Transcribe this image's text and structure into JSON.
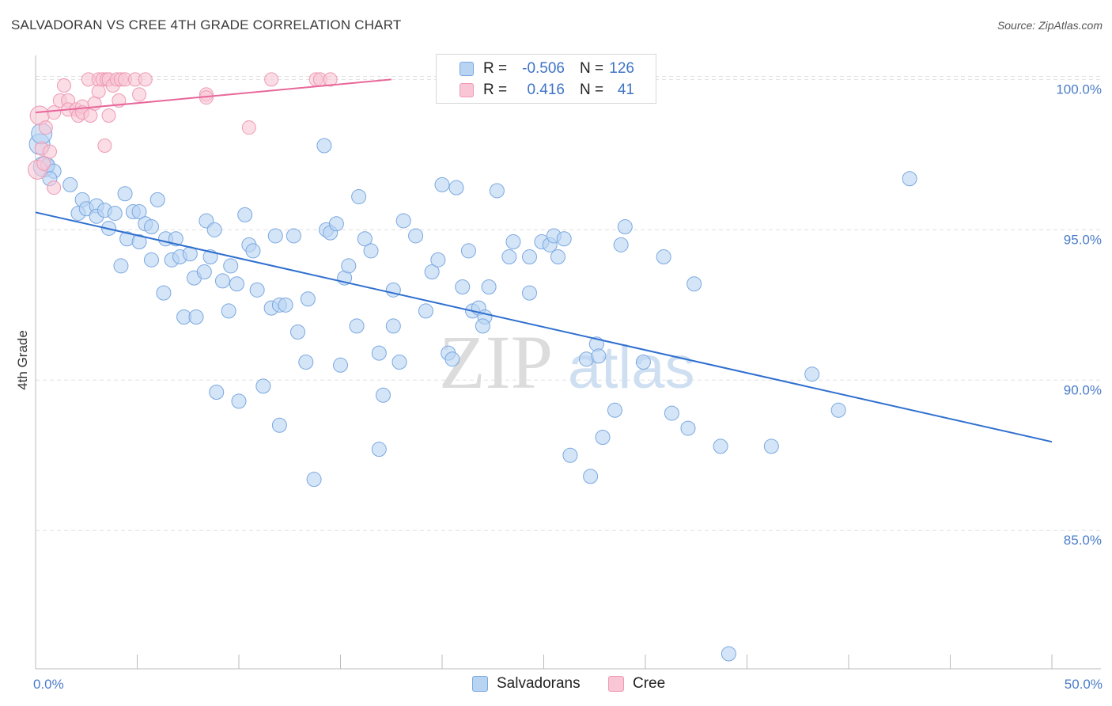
{
  "title": "SALVADORAN VS CREE 4TH GRADE CORRELATION CHART",
  "source": "Source: ZipAtlas.com",
  "colors": {
    "blue_fill": "#b9d4f3",
    "blue_stroke": "#7aa8e0",
    "blue_line": "#2f6fcf",
    "pink_fill": "#f8c6d5",
    "pink_stroke": "#ee9ab5",
    "pink_line": "#e8679a",
    "grid": "#e0e0e0",
    "tick_text": "#4a7cc8"
  },
  "legend": {
    "rows": [
      {
        "r_label": "R =",
        "r_value": "-0.506",
        "n_label": "N =",
        "n_value": "126"
      },
      {
        "r_label": "R =",
        "r_value": "0.416",
        "n_label": "N =",
        "n_value": "41"
      }
    ]
  },
  "bottom_legend": {
    "salvadorans": "Salvadorans",
    "cree": "Cree"
  },
  "watermark": {
    "zip": "ZIP",
    "atlas": "atlas"
  },
  "chart_data": {
    "type": "scatter",
    "title": "SALVADORAN VS CREE 4TH GRADE CORRELATION CHART",
    "xlabel": "",
    "ylabel": "4th Grade",
    "xlim": [
      0,
      50
    ],
    "ylim": [
      80.4,
      100.8
    ],
    "x_tick_labels": {
      "left": "0.0%",
      "right": "50.0%"
    },
    "y_ticks": [
      {
        "value": 100,
        "label": "100.0%"
      },
      {
        "value": 95,
        "label": "95.0%"
      },
      {
        "value": 90,
        "label": "90.0%"
      },
      {
        "value": 85,
        "label": "85.0%"
      }
    ],
    "series": [
      {
        "name": "Salvadorans",
        "color": "#b9d4f3",
        "trend": {
          "x": [
            0,
            50
          ],
          "y": [
            95.58,
            87.95
          ]
        },
        "points": [
          [
            0.2,
            97.85
          ],
          [
            0.4,
            97.1
          ],
          [
            0.6,
            97.15
          ],
          [
            0.9,
            96.95
          ],
          [
            0.7,
            96.7
          ],
          [
            1.7,
            96.5
          ],
          [
            2.3,
            96.0
          ],
          [
            2.1,
            95.55
          ],
          [
            2.5,
            95.7
          ],
          [
            3.0,
            95.8
          ],
          [
            3.0,
            95.45
          ],
          [
            3.4,
            95.65
          ],
          [
            3.6,
            95.05
          ],
          [
            3.9,
            95.55
          ],
          [
            4.4,
            96.2
          ],
          [
            4.2,
            93.8
          ],
          [
            4.5,
            94.7
          ],
          [
            4.8,
            95.6
          ],
          [
            5.1,
            95.6
          ],
          [
            5.1,
            94.6
          ],
          [
            5.4,
            95.2
          ],
          [
            5.7,
            95.1
          ],
          [
            5.7,
            94.0
          ],
          [
            6.0,
            96.0
          ],
          [
            6.3,
            92.9
          ],
          [
            6.4,
            94.7
          ],
          [
            6.7,
            94.0
          ],
          [
            7.1,
            94.1
          ],
          [
            6.9,
            94.7
          ],
          [
            7.3,
            92.1
          ],
          [
            7.6,
            94.2
          ],
          [
            7.8,
            93.4
          ],
          [
            7.9,
            92.1
          ],
          [
            8.3,
            93.6
          ],
          [
            8.4,
            95.3
          ],
          [
            8.6,
            94.1
          ],
          [
            8.8,
            95.0
          ],
          [
            8.9,
            89.6
          ],
          [
            9.2,
            93.3
          ],
          [
            9.5,
            92.3
          ],
          [
            9.6,
            93.8
          ],
          [
            9.9,
            93.2
          ],
          [
            10.0,
            89.3
          ],
          [
            10.3,
            95.5
          ],
          [
            10.5,
            94.5
          ],
          [
            10.7,
            94.3
          ],
          [
            10.9,
            93.0
          ],
          [
            11.2,
            89.8
          ],
          [
            11.6,
            92.4
          ],
          [
            11.8,
            94.8
          ],
          [
            12.0,
            92.5
          ],
          [
            12.0,
            88.5
          ],
          [
            12.3,
            92.5
          ],
          [
            12.7,
            94.8
          ],
          [
            12.9,
            91.6
          ],
          [
            13.3,
            90.6
          ],
          [
            13.4,
            92.7
          ],
          [
            13.7,
            86.7
          ],
          [
            14.2,
            97.8
          ],
          [
            14.3,
            95.0
          ],
          [
            14.5,
            94.9
          ],
          [
            14.8,
            95.2
          ],
          [
            15.0,
            90.5
          ],
          [
            15.2,
            93.4
          ],
          [
            15.4,
            93.8
          ],
          [
            15.8,
            91.8
          ],
          [
            15.9,
            96.1
          ],
          [
            16.2,
            94.7
          ],
          [
            16.5,
            94.3
          ],
          [
            16.9,
            90.9
          ],
          [
            16.9,
            87.7
          ],
          [
            17.1,
            89.5
          ],
          [
            17.6,
            93.0
          ],
          [
            17.6,
            91.8
          ],
          [
            17.9,
            90.6
          ],
          [
            18.1,
            95.3
          ],
          [
            18.7,
            94.8
          ],
          [
            19.2,
            92.3
          ],
          [
            19.5,
            93.6
          ],
          [
            19.8,
            94.0
          ],
          [
            20.0,
            96.5
          ],
          [
            20.3,
            90.9
          ],
          [
            20.5,
            90.7
          ],
          [
            20.7,
            96.4
          ],
          [
            21.0,
            93.1
          ],
          [
            21.3,
            94.3
          ],
          [
            21.5,
            92.3
          ],
          [
            21.8,
            92.4
          ],
          [
            22.1,
            92.1
          ],
          [
            22.0,
            91.8
          ],
          [
            22.3,
            93.1
          ],
          [
            22.7,
            96.3
          ],
          [
            23.3,
            94.1
          ],
          [
            23.5,
            94.6
          ],
          [
            24.3,
            92.9
          ],
          [
            24.3,
            94.1
          ],
          [
            24.9,
            94.6
          ],
          [
            25.3,
            94.5
          ],
          [
            25.5,
            94.8
          ],
          [
            25.7,
            94.1
          ],
          [
            26.0,
            94.7
          ],
          [
            26.3,
            87.5
          ],
          [
            27.1,
            90.7
          ],
          [
            27.3,
            86.8
          ],
          [
            27.6,
            91.2
          ],
          [
            27.7,
            90.8
          ],
          [
            27.9,
            88.1
          ],
          [
            28.5,
            89.0
          ],
          [
            28.8,
            94.5
          ],
          [
            29.0,
            95.1
          ],
          [
            29.9,
            90.6
          ],
          [
            30.9,
            94.1
          ],
          [
            31.3,
            88.9
          ],
          [
            32.1,
            88.4
          ],
          [
            32.4,
            93.2
          ],
          [
            33.7,
            87.8
          ],
          [
            34.1,
            80.9
          ],
          [
            36.2,
            87.8
          ],
          [
            38.2,
            90.2
          ],
          [
            39.5,
            89.0
          ],
          [
            43.0,
            96.7
          ],
          [
            0.3,
            98.2
          ]
        ]
      },
      {
        "name": "Cree",
        "color": "#f8c6d5",
        "trend": {
          "x": [
            0,
            17.5
          ],
          "y": [
            98.9,
            100.0
          ]
        },
        "points": [
          [
            0.1,
            97.0
          ],
          [
            0.2,
            98.8
          ],
          [
            0.3,
            97.7
          ],
          [
            0.4,
            97.2
          ],
          [
            0.5,
            98.4
          ],
          [
            0.7,
            97.6
          ],
          [
            0.9,
            96.4
          ],
          [
            0.9,
            98.9
          ],
          [
            1.2,
            99.3
          ],
          [
            1.4,
            99.8
          ],
          [
            1.6,
            99.3
          ],
          [
            1.6,
            99.0
          ],
          [
            2.0,
            99.0
          ],
          [
            2.1,
            98.8
          ],
          [
            2.3,
            99.1
          ],
          [
            2.3,
            98.9
          ],
          [
            2.6,
            100.0
          ],
          [
            2.7,
            98.8
          ],
          [
            2.9,
            99.2
          ],
          [
            3.1,
            100.0
          ],
          [
            3.1,
            99.6
          ],
          [
            3.3,
            100.0
          ],
          [
            3.5,
            100.0
          ],
          [
            3.6,
            100.0
          ],
          [
            3.4,
            97.8
          ],
          [
            3.6,
            98.8
          ],
          [
            3.8,
            99.8
          ],
          [
            4.0,
            100.0
          ],
          [
            4.1,
            99.3
          ],
          [
            4.2,
            100.0
          ],
          [
            4.4,
            100.0
          ],
          [
            4.9,
            100.0
          ],
          [
            5.1,
            99.5
          ],
          [
            5.4,
            100.0
          ],
          [
            8.4,
            99.5
          ],
          [
            8.4,
            99.4
          ],
          [
            10.5,
            98.4
          ],
          [
            11.6,
            100.0
          ],
          [
            13.8,
            100.0
          ],
          [
            14.0,
            100.0
          ],
          [
            14.5,
            100.0
          ]
        ]
      }
    ]
  }
}
